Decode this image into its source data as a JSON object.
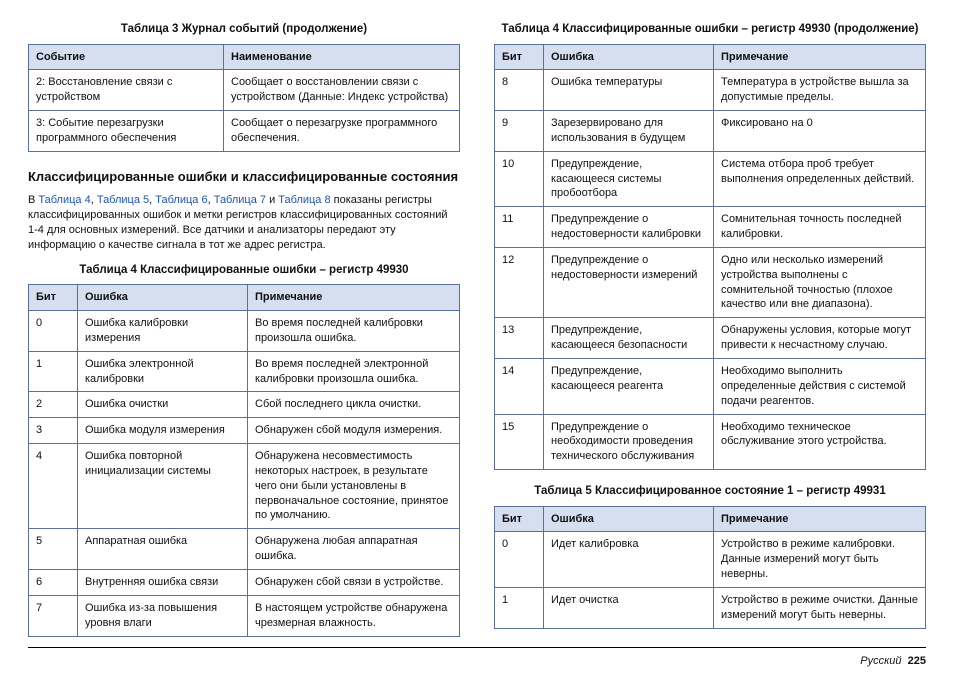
{
  "left": {
    "table3": {
      "title": "Таблица 3  Журнал событий (продолжение)",
      "headers": [
        "Событие",
        "Наименование"
      ],
      "rows": [
        [
          "2: Восстановление связи с устройством",
          "Сообщает о восстановлении связи с устройством (Данные: Индекс устройства)"
        ],
        [
          "3: Событие перезагрузки программного обеспечения",
          "Сообщает о перезагрузке программного обеспечения."
        ]
      ]
    },
    "section_heading": "Классифицированные ошибки и классифицированные состояния",
    "para_pre": "В ",
    "links": [
      "Таблица 4",
      "Таблица 5",
      "Таблица 6",
      "Таблица 7",
      "Таблица 8"
    ],
    "link_sep": ", ",
    "link_last_sep": " и ",
    "para_post": " показаны регистры классифицированных ошибок и метки регистров классифицированных состояний 1-4 для основных измерений. Все датчики и анализаторы передают эту информацию о качестве сигнала в тот же адрес регистра.",
    "table4a": {
      "title": "Таблица 4  Классифицированные ошибки – регистр 49930",
      "headers": [
        "Бит",
        "Ошибка",
        "Примечание"
      ],
      "rows": [
        [
          "0",
          "Ошибка калибровки измерения",
          "Во время последней калибровки произошла ошибка."
        ],
        [
          "1",
          "Ошибка электронной калибровки",
          "Во время последней электронной калибровки произошла ошибка."
        ],
        [
          "2",
          "Ошибка очистки",
          "Сбой последнего цикла очистки."
        ],
        [
          "3",
          "Ошибка модуля измерения",
          "Обнаружен сбой модуля измерения."
        ],
        [
          "4",
          "Ошибка повторной инициализации системы",
          "Обнаружена несовместимость некоторых настроек, в результате чего они были установлены в первоначальное состояние, принятое по умолчанию."
        ],
        [
          "5",
          "Аппаратная ошибка",
          "Обнаружена любая аппаратная ошибка."
        ],
        [
          "6",
          "Внутренняя ошибка связи",
          "Обнаружен сбой связи в устройстве."
        ],
        [
          "7",
          "Ошибка из-за повышения уровня влаги",
          "В настоящем устройстве обнаружена чрезмерная влажность."
        ]
      ]
    }
  },
  "right": {
    "table4b": {
      "title": "Таблица 4  Классифицированные ошибки – регистр 49930 (продолжение)",
      "headers": [
        "Бит",
        "Ошибка",
        "Примечание"
      ],
      "rows": [
        [
          "8",
          "Ошибка температуры",
          "Температура в устройстве вышла за допустимые пределы."
        ],
        [
          "9",
          "Зарезервировано для использования в будущем",
          "Фиксировано на 0"
        ],
        [
          "10",
          "Предупреждение, касающееся системы пробоотбора",
          "Система отбора проб требует выполнения определенных действий."
        ],
        [
          "11",
          "Предупреждение о недостоверности калибровки",
          "Сомнительная точность последней калибровки."
        ],
        [
          "12",
          "Предупреждение о недостоверности измерений",
          "Одно или несколько измерений устройства выполнены с сомнительной точностью (плохое качество или вне диапазона)."
        ],
        [
          "13",
          "Предупреждение, касающееся безопасности",
          "Обнаружены условия, которые могут привести к несчастному случаю."
        ],
        [
          "14",
          "Предупреждение, касающееся реагента",
          "Необходимо выполнить определенные действия с системой подачи реагентов."
        ],
        [
          "15",
          "Предупреждение о необходимости проведения технического обслуживания",
          "Необходимо техническое обслуживание этого устройства."
        ]
      ]
    },
    "table5": {
      "title": "Таблица 5  Классифицированное состояние 1 – регистр 49931",
      "headers": [
        "Бит",
        "Ошибка",
        "Примечание"
      ],
      "rows": [
        [
          "0",
          "Идет калибровка",
          "Устройство в режиме калибровки. Данные измерений могут быть неверны."
        ],
        [
          "1",
          "Идет очистка",
          "Устройство в режиме очистки. Данные измерений могут быть неверны."
        ]
      ]
    }
  },
  "footer": {
    "lang": "Русский",
    "page": "225"
  }
}
